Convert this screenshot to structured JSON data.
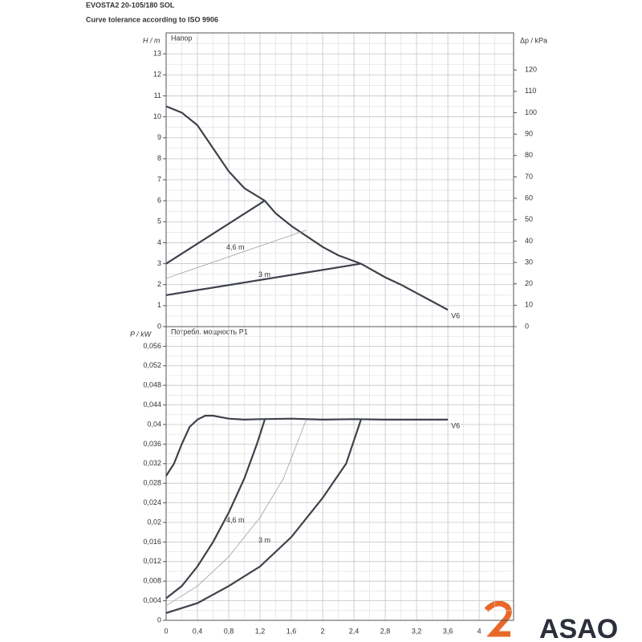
{
  "logo": "ASAO",
  "chart_data": [
    {
      "type": "line",
      "title": "EVOSTA2 20-105/180 SOL",
      "subtitle": "Curve tolerance according to ISO 9906",
      "panel_label": "Напор",
      "ylabel": "H / m",
      "y2label": "Δp / kPa",
      "xlim": [
        0,
        4.44
      ],
      "ylim": [
        0,
        14
      ],
      "yticks": [
        0,
        1,
        2,
        3,
        4,
        5,
        6,
        7,
        8,
        9,
        10,
        11,
        12,
        13
      ],
      "y2lim": [
        0,
        137.34
      ],
      "y2ticks": [
        0,
        10,
        20,
        30,
        40,
        50,
        60,
        70,
        80,
        90,
        100,
        110,
        120
      ],
      "grid": true,
      "series": [
        {
          "name": "V6",
          "color": "#3d424c",
          "x": [
            0,
            0.2,
            0.4,
            0.6,
            0.8,
            1.0,
            1.26,
            1.4,
            1.6,
            1.8,
            2.0,
            2.2,
            2.49,
            2.8,
            3.0,
            3.2,
            3.4,
            3.6
          ],
          "values": [
            10.5,
            10.2,
            9.6,
            8.5,
            7.4,
            6.6,
            6.0,
            5.4,
            4.8,
            4.3,
            3.8,
            3.4,
            3.0,
            2.35,
            2.0,
            1.6,
            1.2,
            0.8
          ]
        },
        {
          "color": "#3d424c",
          "x": [
            0,
            1.26
          ],
          "values": [
            3.0,
            6.0
          ]
        },
        {
          "name": "4,6 m",
          "color": "#a0a0a0",
          "x": [
            0,
            1.79
          ],
          "values": [
            2.3,
            4.6
          ]
        },
        {
          "name": "3 m",
          "color": "#3d424c",
          "x": [
            0,
            2.49
          ],
          "values": [
            1.5,
            3.0
          ]
        }
      ]
    },
    {
      "type": "line",
      "panel_label": "Потребл. мощность P1",
      "ylabel": "P / kW",
      "xlim": [
        0,
        4.44
      ],
      "xticks": [
        0,
        {
          "value": 0.4,
          "label": "0,4"
        },
        {
          "value": 0.8,
          "label": "0,8"
        },
        {
          "value": 1.2,
          "label": "1,2"
        },
        {
          "value": 1.6,
          "label": "1,6"
        },
        2,
        {
          "value": 2.4,
          "label": "2,4"
        },
        {
          "value": 2.8,
          "label": "2,8"
        },
        {
          "value": 3.2,
          "label": "3,2"
        },
        {
          "value": 3.6,
          "label": "3,6"
        },
        4
      ],
      "ylim": [
        0,
        0.06
      ],
      "yticks": [
        0,
        {
          "value": 0.004,
          "label": "0,004"
        },
        {
          "value": 0.008,
          "label": "0,008"
        },
        {
          "value": 0.012,
          "label": "0,012"
        },
        {
          "value": 0.016,
          "label": "0,016"
        },
        {
          "value": 0.02,
          "label": "0,02"
        },
        {
          "value": 0.024,
          "label": "0,024"
        },
        {
          "value": 0.028,
          "label": "0,028"
        },
        {
          "value": 0.032,
          "label": "0,032"
        },
        {
          "value": 0.036,
          "label": "0,036"
        },
        {
          "value": 0.04,
          "label": "0,04"
        },
        {
          "value": 0.044,
          "label": "0,044"
        },
        {
          "value": 0.048,
          "label": "0,048"
        },
        {
          "value": 0.052,
          "label": "0,052"
        },
        {
          "value": 0.056,
          "label": "0,056"
        }
      ],
      "grid": true,
      "series": [
        {
          "name": "V6",
          "color": "#3d424c",
          "x": [
            0,
            0.1,
            0.2,
            0.3,
            0.4,
            0.5,
            0.6,
            0.8,
            1.0,
            1.2,
            1.6,
            2.0,
            2.4,
            2.8,
            3.2,
            3.6
          ],
          "values": [
            0.0295,
            0.032,
            0.036,
            0.0395,
            0.041,
            0.0418,
            0.0418,
            0.0412,
            0.041,
            0.0411,
            0.0412,
            0.041,
            0.0411,
            0.041,
            0.041,
            0.041
          ]
        },
        {
          "color": "#3d424c",
          "x": [
            0,
            0.2,
            0.4,
            0.6,
            0.8,
            1.0,
            1.16,
            1.26
          ],
          "values": [
            0.0045,
            0.007,
            0.011,
            0.016,
            0.022,
            0.029,
            0.036,
            0.041
          ]
        },
        {
          "name": "4,6 m",
          "color": "#a0a0a0",
          "x": [
            0,
            0.4,
            0.8,
            1.2,
            1.5,
            1.79
          ],
          "values": [
            0.003,
            0.007,
            0.013,
            0.021,
            0.029,
            0.041
          ]
        },
        {
          "name": "3 m",
          "color": "#3d424c",
          "x": [
            0,
            0.4,
            0.8,
            1.2,
            1.6,
            2.0,
            2.3,
            2.49
          ],
          "values": [
            0.0015,
            0.0035,
            0.007,
            0.011,
            0.017,
            0.025,
            0.032,
            0.041
          ]
        }
      ]
    }
  ]
}
